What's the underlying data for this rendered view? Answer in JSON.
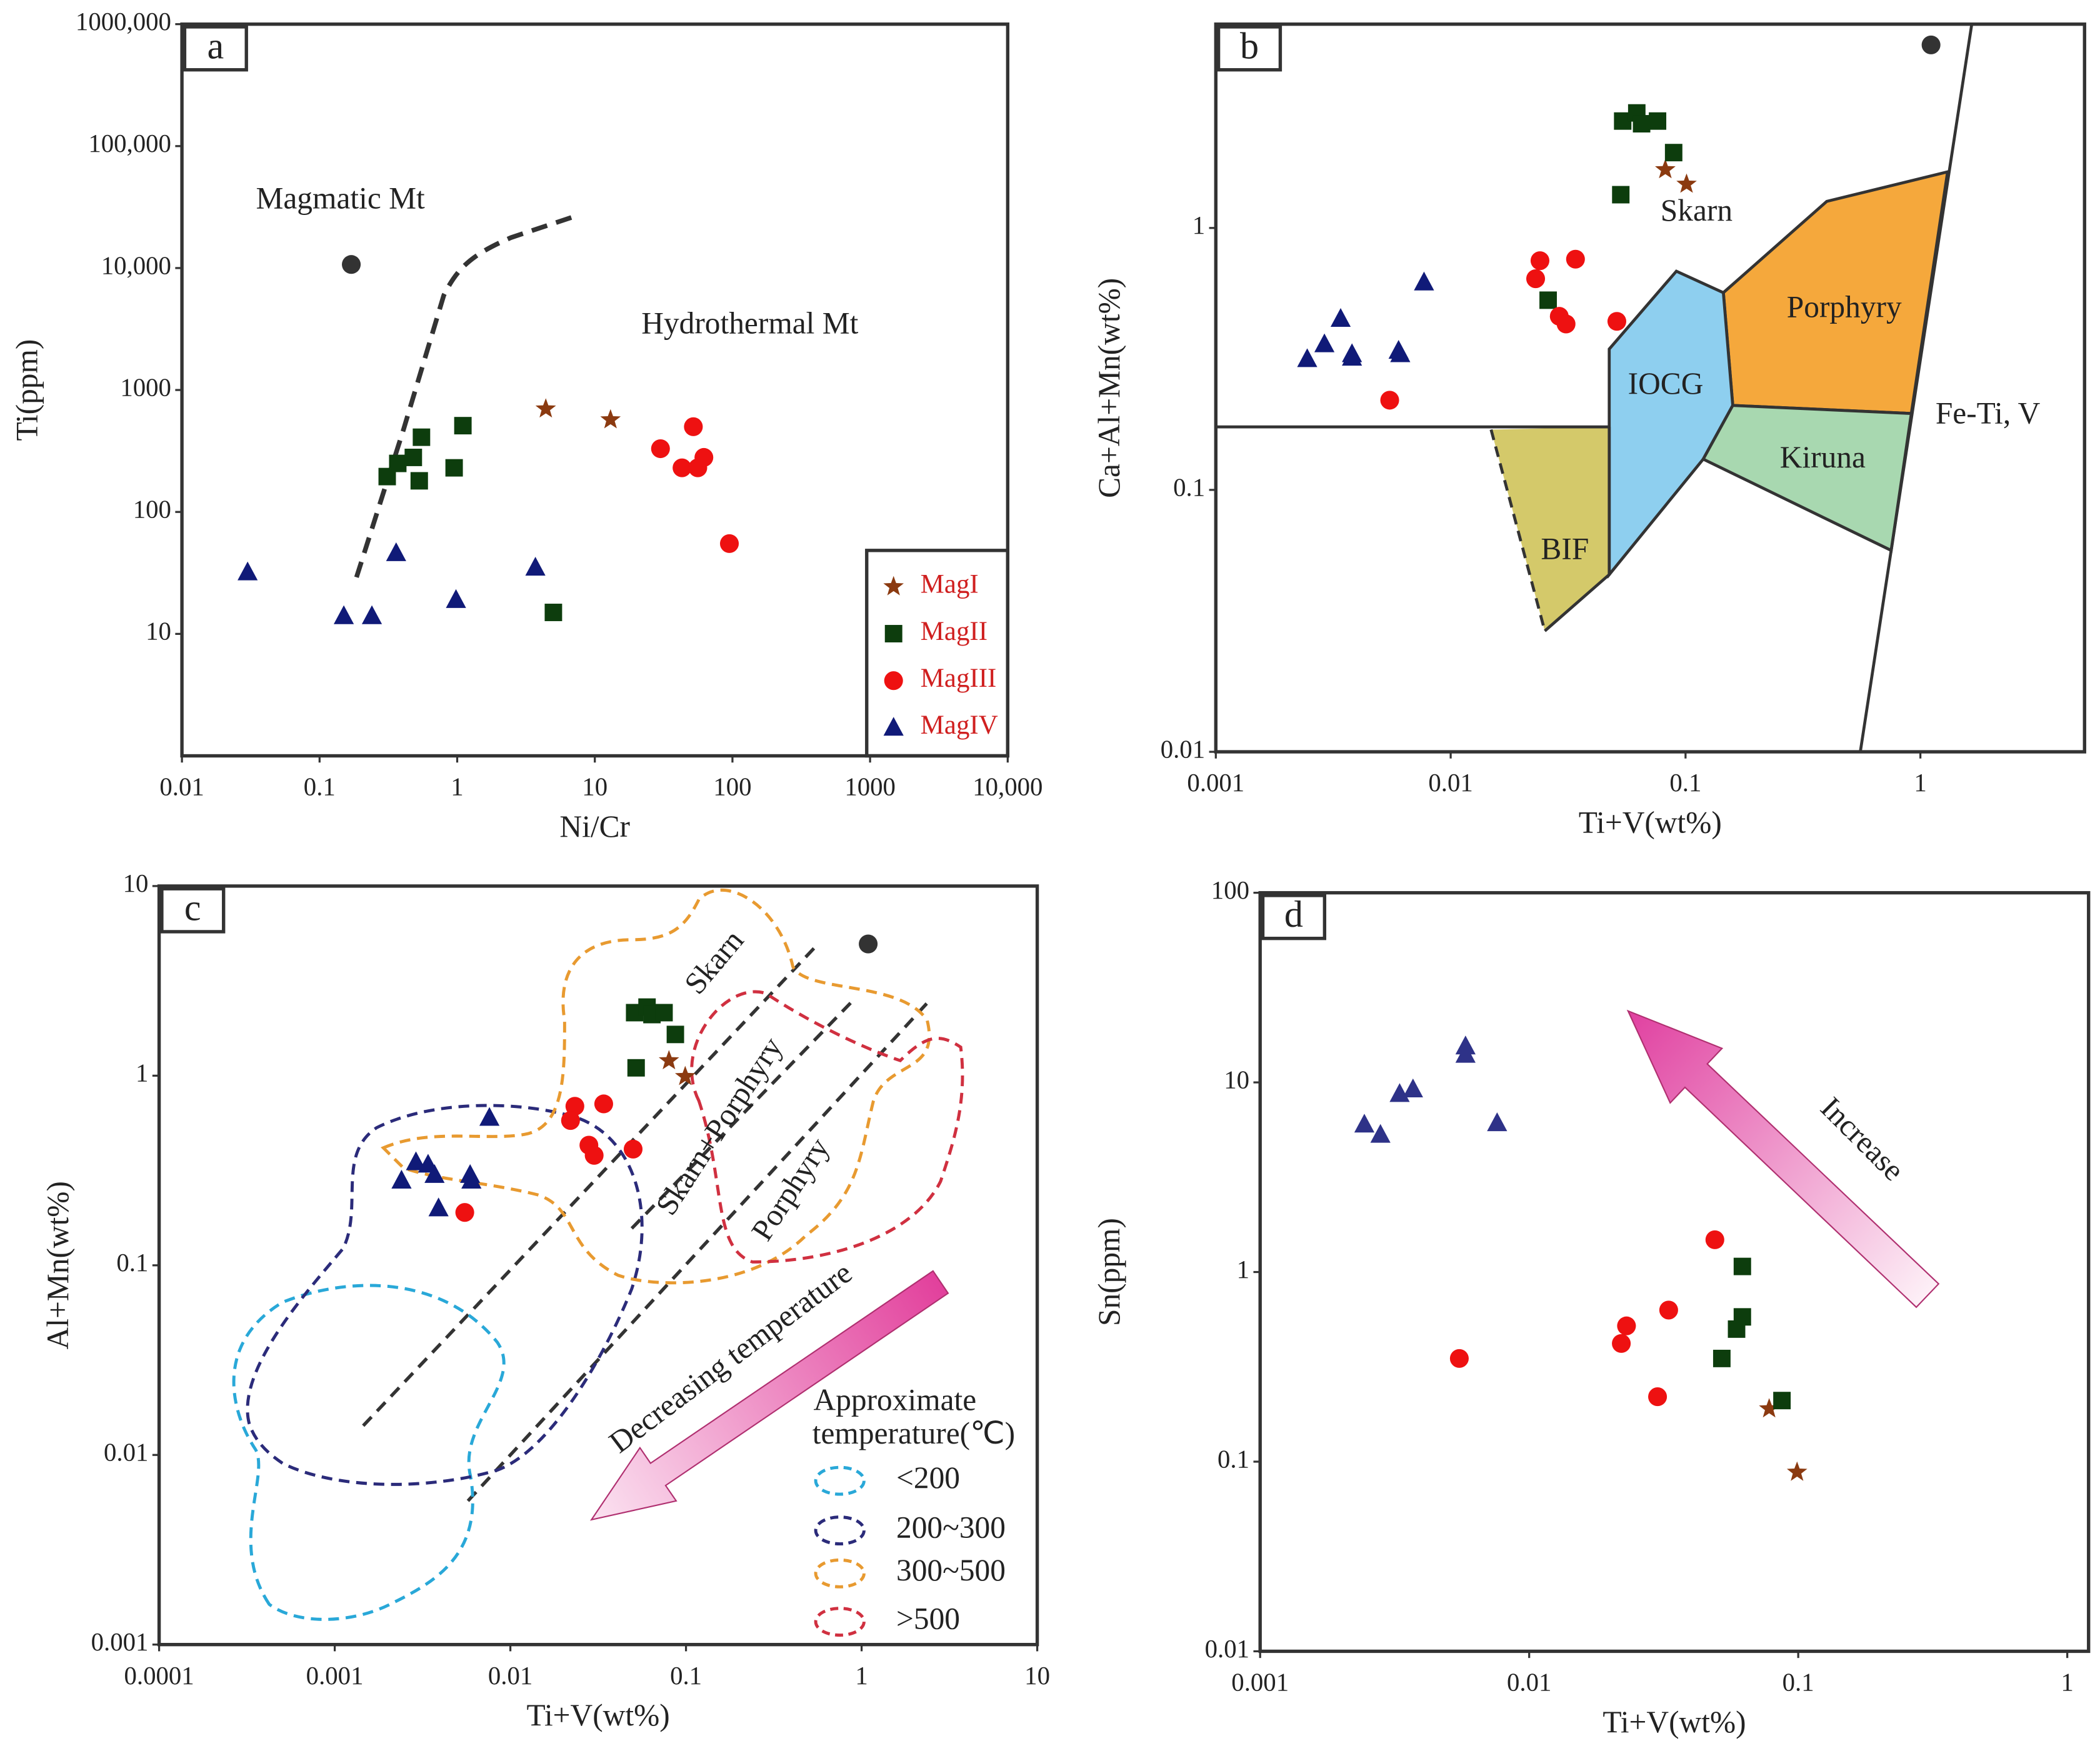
{
  "chart_data": [
    {
      "type": "scatter",
      "panel_label": "a",
      "xlabel": "Ni/Cr",
      "ylabel": "Ti(ppm)",
      "log_scale": true,
      "xlim": [
        0.01,
        10000
      ],
      "ylim": [
        1,
        1000000
      ],
      "xticks": [
        0.01,
        0.1,
        1,
        10,
        100,
        1000,
        {
          "value": 10000,
          "label": "10,000"
        }
      ],
      "yticks": [
        10,
        100,
        1000,
        {
          "value": 10000,
          "label": "10,000"
        },
        {
          "value": 100000,
          "label": "100,000"
        },
        {
          "value": 1000000,
          "label": "1000,000"
        }
      ],
      "legend": true,
      "annotations": [
        "Magmatic Mt",
        "Hydrothermal Mt"
      ],
      "series": [
        {
          "name": "MagI",
          "marker": "star",
          "color": "#8b3a10",
          "x": [
            4.4,
            13
          ],
          "y": [
            700,
            570
          ]
        },
        {
          "name": "MagII",
          "marker": "square",
          "color": "#0d3d0d",
          "x": [
            0.31,
            0.37,
            0.48,
            0.55,
            0.53,
            0.95,
            1.1,
            5
          ],
          "y": [
            195,
            250,
            280,
            410,
            180,
            230,
            510,
            15
          ]
        },
        {
          "name": "MagIII",
          "marker": "circle",
          "color": "#ee1111",
          "x": [
            30,
            52,
            43,
            56,
            62,
            95
          ],
          "y": [
            330,
            500,
            230,
            230,
            280,
            55
          ]
        },
        {
          "name": "MagIV",
          "marker": "triangle",
          "color": "#101a78",
          "x": [
            0.03,
            0.15,
            0.24,
            0.36,
            0.98,
            3.7
          ],
          "y": [
            32,
            14,
            14,
            46,
            19,
            35
          ]
        },
        {
          "marker": "circle",
          "color": "#333333",
          "x": [
            0.17
          ],
          "y": [
            10700
          ]
        }
      ]
    },
    {
      "type": "scatter",
      "panel_label": "b",
      "xlabel": "Ti+V(wt%)",
      "ylabel": "Ca+Al+Mn(wt%)",
      "log_scale": true,
      "xlim": [
        0.001,
        5
      ],
      "ylim": [
        0.01,
        6
      ],
      "xticks": [
        0.001,
        0.01,
        0.1,
        1
      ],
      "yticks": [
        0.01,
        0.1,
        1
      ],
      "annotations": [
        "Skarn",
        "Porphyry",
        "IOCG",
        "Kiruna",
        "BIF",
        "Fe-Ti, V"
      ],
      "series": [
        {
          "marker": "star",
          "color": "#8b3a10",
          "x": [
            0.082,
            0.101
          ],
          "y": [
            1.67,
            1.47
          ]
        },
        {
          "marker": "square",
          "color": "#0d3d0d",
          "x": [
            0.054,
            0.062,
            0.065,
            0.076,
            0.089,
            0.053,
            0.026
          ],
          "y": [
            2.56,
            2.75,
            2.5,
            2.56,
            1.94,
            1.34,
            0.53
          ]
        },
        {
          "marker": "circle",
          "color": "#ee1111",
          "x": [
            0.024,
            0.034,
            0.023,
            0.029,
            0.031,
            0.051,
            0.0055
          ],
          "y": [
            0.75,
            0.76,
            0.64,
            0.46,
            0.43,
            0.44,
            0.22
          ]
        },
        {
          "marker": "triangle",
          "color": "#101a78",
          "x": [
            0.00245,
            0.0029,
            0.0034,
            0.0038,
            0.0038,
            0.006,
            0.0061,
            0.0077
          ],
          "y": [
            0.316,
            0.36,
            0.45,
            0.33,
            0.32,
            0.34,
            0.33,
            0.62
          ]
        },
        {
          "marker": "circle",
          "color": "#333333",
          "x": [
            1.11
          ],
          "y": [
            5.0
          ]
        }
      ]
    },
    {
      "type": "scatter",
      "panel_label": "c",
      "xlabel": "Ti+V(wt%)",
      "ylabel": "Al+Mn(wt%)",
      "log_scale": true,
      "xlim": [
        0.0001,
        10
      ],
      "ylim": [
        0.001,
        10
      ],
      "xticks": [
        0.0001,
        0.001,
        0.01,
        0.1,
        1,
        10
      ],
      "yticks": [
        0.001,
        0.01,
        0.1,
        1,
        10
      ],
      "annotations": [
        "Skarn",
        "Skarn+Porphyry",
        "Porphyry",
        "Decreasing temperature",
        "Approximate",
        "temperature(℃)"
      ],
      "contours": [
        {
          "name": "<200",
          "color": "#29a8d8"
        },
        {
          "name": "200~300",
          "color": "#2b2b7a"
        },
        {
          "name": "300~500",
          "color": "#e89a30"
        },
        {
          "name": ">500",
          "color": "#d03040"
        }
      ],
      "series": [
        {
          "marker": "star",
          "color": "#8b3a10",
          "x": [
            0.08,
            0.099
          ],
          "y": [
            1.2,
            0.99
          ]
        },
        {
          "marker": "square",
          "color": "#0d3d0d",
          "x": [
            0.051,
            0.06,
            0.064,
            0.075,
            0.087,
            0.052
          ],
          "y": [
            2.15,
            2.3,
            2.1,
            2.15,
            1.65,
            1.1
          ]
        },
        {
          "marker": "circle",
          "color": "#ee1111",
          "x": [
            0.0233,
            0.022,
            0.034,
            0.028,
            0.03,
            0.05,
            0.0055
          ],
          "y": [
            0.69,
            0.58,
            0.71,
            0.43,
            0.38,
            0.41,
            0.19
          ]
        },
        {
          "marker": "triangle",
          "color": "#101a78",
          "x": [
            0.0024,
            0.0029,
            0.0034,
            0.0037,
            0.0039,
            0.0059,
            0.006,
            0.0076
          ],
          "y": [
            0.28,
            0.35,
            0.34,
            0.3,
            0.2,
            0.3,
            0.28,
            0.6
          ]
        },
        {
          "marker": "circle",
          "color": "#333333",
          "x": [
            1.09
          ],
          "y": [
            4.95
          ]
        }
      ]
    },
    {
      "type": "scatter",
      "panel_label": "d",
      "xlabel": "Ti+V(wt%)",
      "ylabel": "Sn(ppm)",
      "log_scale": true,
      "xlim": [
        0.001,
        1.2
      ],
      "ylim": [
        0.01,
        100
      ],
      "xticks": [
        0.001,
        0.01,
        0.1,
        1
      ],
      "yticks": [
        0.01,
        0.1,
        1,
        10,
        100
      ],
      "annotations": [
        "Increase"
      ],
      "series": [
        {
          "marker": "star",
          "color": "#8b3a10",
          "x": [
            0.078,
            0.099
          ],
          "y": [
            0.19,
            0.088
          ]
        },
        {
          "marker": "square",
          "color": "#0d3d0d",
          "x": [
            0.062,
            0.062,
            0.059,
            0.052,
            0.087
          ],
          "y": [
            1.07,
            0.58,
            0.5,
            0.35,
            0.21
          ]
        },
        {
          "marker": "circle",
          "color": "#ee1111",
          "x": [
            0.049,
            0.0055,
            0.023,
            0.022,
            0.033,
            0.03
          ],
          "y": [
            1.48,
            0.35,
            0.52,
            0.42,
            0.63,
            0.22
          ]
        },
        {
          "marker": "triangle",
          "color": "#2e3288",
          "x": [
            0.00244,
            0.0028,
            0.0033,
            0.0037,
            0.0058,
            0.0058,
            0.0076
          ],
          "y": [
            6.0,
            5.3,
            8.7,
            9.2,
            15.5,
            14,
            6.1
          ]
        }
      ]
    }
  ]
}
